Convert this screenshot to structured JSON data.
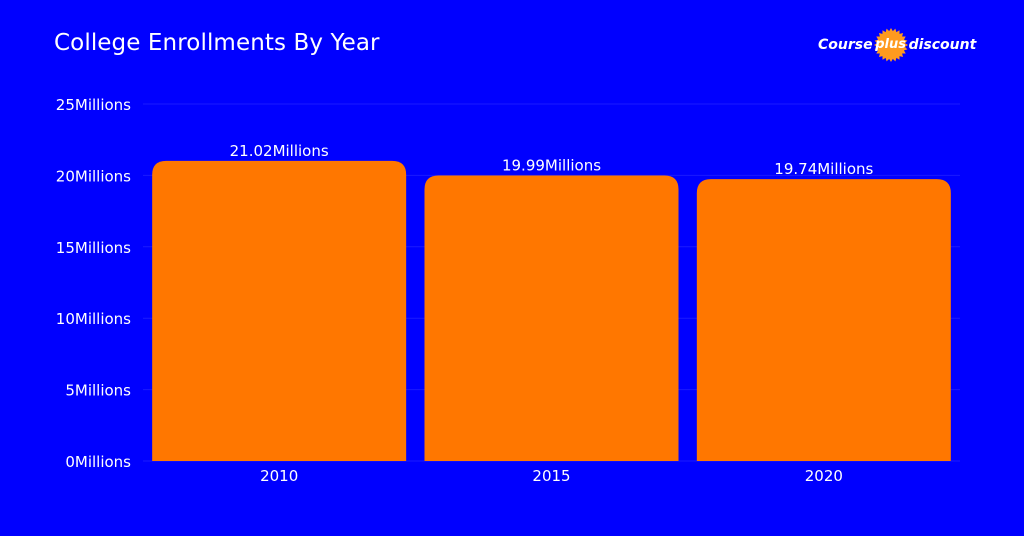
{
  "header": {
    "title": "College Enrollments By Year"
  },
  "logo": {
    "left": "Course",
    "badge": "plus",
    "right": "discount",
    "badge_color": "#FF9A1F"
  },
  "colors": {
    "background": "#0000FF",
    "bar": "#FF7700",
    "text": "#FFFFFF"
  },
  "chart_data": {
    "type": "bar",
    "title": "College Enrollments By Year",
    "categories": [
      "2010",
      "2015",
      "2020"
    ],
    "values": [
      21.02,
      19.99,
      19.74
    ],
    "value_labels": [
      "21.02Millions",
      "19.99Millions",
      "19.74Millions"
    ],
    "y_ticks": [
      0,
      5,
      10,
      15,
      20,
      25
    ],
    "y_tick_labels": [
      "0Millions",
      "5Millions",
      "10Millions",
      "15Millions",
      "20Millions",
      "25Millions"
    ],
    "ylim": [
      0,
      25
    ],
    "xlabel": "",
    "ylabel": "",
    "grid": true
  }
}
